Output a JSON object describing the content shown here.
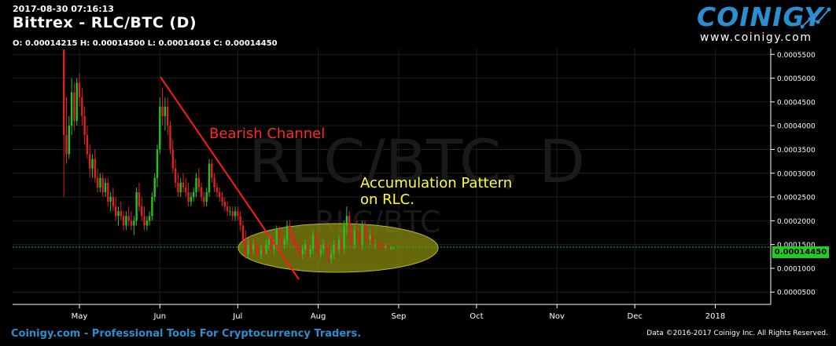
{
  "header": {
    "datetime": "2017-08-30 07:16:13",
    "title": "Bittrex - RLC/BTC (D)",
    "ohlc": "O: 0.00014215 H: 0.00014500 L: 0.00014016 C: 0.00014450"
  },
  "logo": {
    "name": "COINIGY",
    "url": "www.coinigy.com"
  },
  "watermark": {
    "main": "RLC/BTC, D",
    "sub": "RLC/BTC"
  },
  "current_price_label": "0.00014450",
  "footer": {
    "left": "Coinigy.com - Professional Tools For Cryptocurrency Traders.",
    "right": "Data ©2016-2017 Coinigy Inc. All Rights Reserved."
  },
  "annotations": {
    "channel_label": "Bearish Channel",
    "accumulation_line1": "Accumulation Pattern",
    "accumulation_line2": "on RLC."
  },
  "colors": {
    "up": "#22c422",
    "down": "#e02020",
    "channel": "#ff1a1a",
    "annotation_text_red": "#ff2a2a",
    "annotation_text_yellow": "#ffff33",
    "ellipse_fill": "#8a8a10",
    "price_tag": "#1fcf1f"
  },
  "chart_data": {
    "type": "candlestick",
    "y_axis_ticks": [
      "0.0000500",
      "0.0001000",
      "0.0001500",
      "0.0002000",
      "0.0002500",
      "0.0003000",
      "0.0003500",
      "0.0004000",
      "0.0004500",
      "0.0005000",
      "0.0005500"
    ],
    "ylim": [
      2.4e-05,
      0.000562
    ],
    "x_axis_ticks": [
      "May",
      "Jun",
      "Jul",
      "Aug",
      "Sep",
      "Oct",
      "Nov",
      "Dec",
      "2018"
    ],
    "current_price": 0.0001445,
    "series": [
      {
        "date": "2017-04-25",
        "o": 0.00056,
        "h": 0.00056,
        "l": 0.00025,
        "c": 0.00038
      },
      {
        "date": "2017-04-26",
        "o": 0.00038,
        "h": 0.00046,
        "l": 0.00032,
        "c": 0.00034
      },
      {
        "date": "2017-04-27",
        "o": 0.00034,
        "h": 0.00042,
        "l": 0.00033,
        "c": 0.0004
      },
      {
        "date": "2017-04-28",
        "o": 0.0004,
        "h": 0.0005,
        "l": 0.00038,
        "c": 0.00047
      },
      {
        "date": "2017-04-29",
        "o": 0.00047,
        "h": 0.00049,
        "l": 0.00039,
        "c": 0.00041
      },
      {
        "date": "2017-04-30",
        "o": 0.00041,
        "h": 0.0005,
        "l": 0.0004,
        "c": 0.00049
      },
      {
        "date": "2017-05-01",
        "o": 0.00049,
        "h": 0.00051,
        "l": 0.00044,
        "c": 0.00046
      },
      {
        "date": "2017-05-02",
        "o": 0.00046,
        "h": 0.00048,
        "l": 0.0004,
        "c": 0.00042
      },
      {
        "date": "2017-05-03",
        "o": 0.00042,
        "h": 0.00044,
        "l": 0.00036,
        "c": 0.00038
      },
      {
        "date": "2017-05-04",
        "o": 0.00038,
        "h": 0.0004,
        "l": 0.00033,
        "c": 0.00034
      },
      {
        "date": "2017-05-05",
        "o": 0.00034,
        "h": 0.00036,
        "l": 0.00029,
        "c": 0.00031
      },
      {
        "date": "2017-05-06",
        "o": 0.00031,
        "h": 0.00034,
        "l": 0.00029,
        "c": 0.00033
      },
      {
        "date": "2017-05-07",
        "o": 0.00033,
        "h": 0.00035,
        "l": 0.00028,
        "c": 0.00029
      },
      {
        "date": "2017-05-08",
        "o": 0.00029,
        "h": 0.00031,
        "l": 0.00026,
        "c": 0.00027
      },
      {
        "date": "2017-05-09",
        "o": 0.00027,
        "h": 0.0003,
        "l": 0.00026,
        "c": 0.00029
      },
      {
        "date": "2017-05-10",
        "o": 0.00029,
        "h": 0.0003,
        "l": 0.00025,
        "c": 0.00026
      },
      {
        "date": "2017-05-11",
        "o": 0.00026,
        "h": 0.00029,
        "l": 0.00025,
        "c": 0.00028
      },
      {
        "date": "2017-05-12",
        "o": 0.00028,
        "h": 0.00029,
        "l": 0.00023,
        "c": 0.00024
      },
      {
        "date": "2017-05-13",
        "o": 0.00024,
        "h": 0.00026,
        "l": 0.00022,
        "c": 0.00025
      },
      {
        "date": "2017-05-14",
        "o": 0.00025,
        "h": 0.00027,
        "l": 0.00022,
        "c": 0.00023
      },
      {
        "date": "2017-05-15",
        "o": 0.00023,
        "h": 0.00025,
        "l": 0.0002,
        "c": 0.00021
      },
      {
        "date": "2017-05-16",
        "o": 0.00021,
        "h": 0.00023,
        "l": 0.00019,
        "c": 0.00022
      },
      {
        "date": "2017-05-17",
        "o": 0.00022,
        "h": 0.00024,
        "l": 0.0002,
        "c": 0.00021
      },
      {
        "date": "2017-05-18",
        "o": 0.00021,
        "h": 0.00022,
        "l": 0.00018,
        "c": 0.00019
      },
      {
        "date": "2017-05-19",
        "o": 0.00019,
        "h": 0.00022,
        "l": 0.00018,
        "c": 0.00021
      },
      {
        "date": "2017-05-20",
        "o": 0.00021,
        "h": 0.00023,
        "l": 0.00019,
        "c": 0.0002
      },
      {
        "date": "2017-05-21",
        "o": 0.0002,
        "h": 0.00022,
        "l": 0.00018,
        "c": 0.00019
      },
      {
        "date": "2017-05-22",
        "o": 0.00019,
        "h": 0.00021,
        "l": 0.00017,
        "c": 0.0002
      },
      {
        "date": "2017-05-23",
        "o": 0.0002,
        "h": 0.00027,
        "l": 0.00019,
        "c": 0.00026
      },
      {
        "date": "2017-05-24",
        "o": 0.00026,
        "h": 0.00028,
        "l": 0.00022,
        "c": 0.00023
      },
      {
        "date": "2017-05-25",
        "o": 0.00023,
        "h": 0.00025,
        "l": 0.0002,
        "c": 0.00021
      },
      {
        "date": "2017-05-26",
        "o": 0.00021,
        "h": 0.00023,
        "l": 0.00018,
        "c": 0.00019
      },
      {
        "date": "2017-05-27",
        "o": 0.00019,
        "h": 0.00021,
        "l": 0.00018,
        "c": 0.0002
      },
      {
        "date": "2017-05-28",
        "o": 0.0002,
        "h": 0.00022,
        "l": 0.00019,
        "c": 0.00021
      },
      {
        "date": "2017-05-29",
        "o": 0.00021,
        "h": 0.00026,
        "l": 0.0002,
        "c": 0.00025
      },
      {
        "date": "2017-05-30",
        "o": 0.00025,
        "h": 0.0003,
        "l": 0.00024,
        "c": 0.00029
      },
      {
        "date": "2017-05-31",
        "o": 0.00029,
        "h": 0.00036,
        "l": 0.00027,
        "c": 0.00035
      },
      {
        "date": "2017-06-01",
        "o": 0.00035,
        "h": 0.00046,
        "l": 0.00034,
        "c": 0.00044
      },
      {
        "date": "2017-06-02",
        "o": 0.00044,
        "h": 0.00048,
        "l": 0.0004,
        "c": 0.00042
      },
      {
        "date": "2017-06-03",
        "o": 0.00042,
        "h": 0.00046,
        "l": 0.00039,
        "c": 0.00044
      },
      {
        "date": "2017-06-04",
        "o": 0.00044,
        "h": 0.00046,
        "l": 0.00038,
        "c": 0.0004
      },
      {
        "date": "2017-06-05",
        "o": 0.0004,
        "h": 0.00041,
        "l": 0.00034,
        "c": 0.00035
      },
      {
        "date": "2017-06-06",
        "o": 0.00035,
        "h": 0.00037,
        "l": 0.0003,
        "c": 0.00031
      },
      {
        "date": "2017-06-07",
        "o": 0.00031,
        "h": 0.00033,
        "l": 0.00027,
        "c": 0.00028
      },
      {
        "date": "2017-06-08",
        "o": 0.00028,
        "h": 0.0003,
        "l": 0.00025,
        "c": 0.00026
      },
      {
        "date": "2017-06-09",
        "o": 0.00026,
        "h": 0.00029,
        "l": 0.00025,
        "c": 0.00028
      },
      {
        "date": "2017-06-10",
        "o": 0.00028,
        "h": 0.0003,
        "l": 0.00026,
        "c": 0.00027
      },
      {
        "date": "2017-06-11",
        "o": 0.00027,
        "h": 0.00029,
        "l": 0.00025,
        "c": 0.00026
      },
      {
        "date": "2017-06-12",
        "o": 0.00026,
        "h": 0.00028,
        "l": 0.00023,
        "c": 0.00024
      },
      {
        "date": "2017-06-13",
        "o": 0.00024,
        "h": 0.00026,
        "l": 0.00023,
        "c": 0.00025
      },
      {
        "date": "2017-06-14",
        "o": 0.00025,
        "h": 0.00027,
        "l": 0.00024,
        "c": 0.00026
      },
      {
        "date": "2017-06-15",
        "o": 0.00026,
        "h": 0.0003,
        "l": 0.00025,
        "c": 0.00029
      },
      {
        "date": "2017-06-16",
        "o": 0.00029,
        "h": 0.00031,
        "l": 0.00026,
        "c": 0.00027
      },
      {
        "date": "2017-06-17",
        "o": 0.00027,
        "h": 0.00028,
        "l": 0.00024,
        "c": 0.00025
      },
      {
        "date": "2017-06-18",
        "o": 0.00025,
        "h": 0.00026,
        "l": 0.00023,
        "c": 0.00024
      },
      {
        "date": "2017-06-19",
        "o": 0.00024,
        "h": 0.00027,
        "l": 0.00023,
        "c": 0.00026
      },
      {
        "date": "2017-06-20",
        "o": 0.00026,
        "h": 0.00033,
        "l": 0.00025,
        "c": 0.00032
      },
      {
        "date": "2017-06-21",
        "o": 0.00032,
        "h": 0.00033,
        "l": 0.00028,
        "c": 0.00029
      },
      {
        "date": "2017-06-22",
        "o": 0.00029,
        "h": 0.0003,
        "l": 0.00026,
        "c": 0.00027
      },
      {
        "date": "2017-06-23",
        "o": 0.00027,
        "h": 0.00028,
        "l": 0.00025,
        "c": 0.00026
      },
      {
        "date": "2017-06-24",
        "o": 0.00026,
        "h": 0.00027,
        "l": 0.00024,
        "c": 0.00025
      },
      {
        "date": "2017-06-25",
        "o": 0.00025,
        "h": 0.00026,
        "l": 0.00023,
        "c": 0.00024
      },
      {
        "date": "2017-06-26",
        "o": 0.00024,
        "h": 0.00025,
        "l": 0.00022,
        "c": 0.00023
      },
      {
        "date": "2017-06-27",
        "o": 0.00023,
        "h": 0.00024,
        "l": 0.00021,
        "c": 0.00022
      },
      {
        "date": "2017-06-28",
        "o": 0.00022,
        "h": 0.00023,
        "l": 0.00021,
        "c": 0.00022
      },
      {
        "date": "2017-06-29",
        "o": 0.00022,
        "h": 0.00023,
        "l": 0.0002,
        "c": 0.00021
      },
      {
        "date": "2017-06-30",
        "o": 0.00021,
        "h": 0.00023,
        "l": 0.0002,
        "c": 0.00022
      },
      {
        "date": "2017-07-01",
        "o": 0.00022,
        "h": 0.00023,
        "l": 0.0002,
        "c": 0.00021
      },
      {
        "date": "2017-07-02",
        "o": 0.00021,
        "h": 0.00022,
        "l": 0.00018,
        "c": 0.00019
      },
      {
        "date": "2017-07-03",
        "o": 0.00019,
        "h": 0.0002,
        "l": 0.00015,
        "c": 0.00016
      },
      {
        "date": "2017-07-04",
        "o": 0.00016,
        "h": 0.00018,
        "l": 0.00012,
        "c": 0.00013
      },
      {
        "date": "2017-07-05",
        "o": 0.00013,
        "h": 0.00016,
        "l": 0.00012,
        "c": 0.00015
      },
      {
        "date": "2017-07-06",
        "o": 0.00015,
        "h": 0.00017,
        "l": 0.00013,
        "c": 0.00014
      },
      {
        "date": "2017-07-07",
        "o": 0.00014,
        "h": 0.00016,
        "l": 0.00013,
        "c": 0.00015
      },
      {
        "date": "2017-07-08",
        "o": 0.00015,
        "h": 0.00016,
        "l": 0.00013,
        "c": 0.00014
      },
      {
        "date": "2017-07-09",
        "o": 0.00014,
        "h": 0.00015,
        "l": 0.00012,
        "c": 0.00013
      },
      {
        "date": "2017-07-10",
        "o": 0.00013,
        "h": 0.00015,
        "l": 0.00012,
        "c": 0.00014
      },
      {
        "date": "2017-07-11",
        "o": 0.00014,
        "h": 0.00015,
        "l": 0.00013,
        "c": 0.00013
      },
      {
        "date": "2017-07-12",
        "o": 0.00013,
        "h": 0.00016,
        "l": 0.00013,
        "c": 0.00015
      },
      {
        "date": "2017-07-13",
        "o": 0.00015,
        "h": 0.00017,
        "l": 0.00014,
        "c": 0.00016
      },
      {
        "date": "2017-07-14",
        "o": 0.00016,
        "h": 0.00017,
        "l": 0.00013,
        "c": 0.00014
      },
      {
        "date": "2017-07-15",
        "o": 0.00014,
        "h": 0.00016,
        "l": 0.00013,
        "c": 0.00015
      },
      {
        "date": "2017-07-16",
        "o": 0.00015,
        "h": 0.00019,
        "l": 0.00014,
        "c": 0.00018
      },
      {
        "date": "2017-07-17",
        "o": 0.00018,
        "h": 0.00019,
        "l": 0.00015,
        "c": 0.00016
      },
      {
        "date": "2017-07-18",
        "o": 0.00016,
        "h": 0.00017,
        "l": 0.00014,
        "c": 0.00015
      },
      {
        "date": "2017-07-19",
        "o": 0.00015,
        "h": 0.00017,
        "l": 0.00014,
        "c": 0.00016
      },
      {
        "date": "2017-07-20",
        "o": 0.00016,
        "h": 0.0002,
        "l": 0.00015,
        "c": 0.00019
      },
      {
        "date": "2017-07-21",
        "o": 0.00019,
        "h": 0.0002,
        "l": 0.00016,
        "c": 0.00017
      },
      {
        "date": "2017-07-22",
        "o": 0.00017,
        "h": 0.00018,
        "l": 0.00015,
        "c": 0.00016
      },
      {
        "date": "2017-07-23",
        "o": 0.00016,
        "h": 0.00017,
        "l": 0.00014,
        "c": 0.00015
      },
      {
        "date": "2017-07-24",
        "o": 0.00015,
        "h": 0.00016,
        "l": 0.00013,
        "c": 0.00014
      },
      {
        "date": "2017-07-25",
        "o": 0.00014,
        "h": 0.00015,
        "l": 0.00012,
        "c": 0.00013
      },
      {
        "date": "2017-07-26",
        "o": 0.00013,
        "h": 0.00015,
        "l": 0.00012,
        "c": 0.00014
      },
      {
        "date": "2017-07-27",
        "o": 0.00014,
        "h": 0.00016,
        "l": 0.00013,
        "c": 0.00015
      },
      {
        "date": "2017-07-28",
        "o": 0.00015,
        "h": 0.00016,
        "l": 0.00012,
        "c": 0.00013
      },
      {
        "date": "2017-07-29",
        "o": 0.00013,
        "h": 0.00015,
        "l": 0.00012,
        "c": 0.00014
      },
      {
        "date": "2017-07-30",
        "o": 0.00014,
        "h": 0.00018,
        "l": 0.00013,
        "c": 0.00017
      },
      {
        "date": "2017-07-31",
        "o": 0.00017,
        "h": 0.00018,
        "l": 0.00014,
        "c": 0.00015
      },
      {
        "date": "2017-08-01",
        "o": 0.00015,
        "h": 0.00016,
        "l": 0.00012,
        "c": 0.00013
      },
      {
        "date": "2017-08-02",
        "o": 0.00013,
        "h": 0.00015,
        "l": 0.00012,
        "c": 0.00014
      },
      {
        "date": "2017-08-03",
        "o": 0.00014,
        "h": 0.00016,
        "l": 0.00013,
        "c": 0.00015
      },
      {
        "date": "2017-08-04",
        "o": 0.00015,
        "h": 0.00016,
        "l": 0.00013,
        "c": 0.00014
      },
      {
        "date": "2017-08-05",
        "o": 0.00014,
        "h": 0.00015,
        "l": 0.00011,
        "c": 0.00012
      },
      {
        "date": "2017-08-06",
        "o": 0.00012,
        "h": 0.00014,
        "l": 0.00011,
        "c": 0.00013
      },
      {
        "date": "2017-08-07",
        "o": 0.00013,
        "h": 0.00016,
        "l": 0.00012,
        "c": 0.00015
      },
      {
        "date": "2017-08-08",
        "o": 0.00015,
        "h": 0.00016,
        "l": 0.00013,
        "c": 0.00014
      },
      {
        "date": "2017-08-09",
        "o": 0.00014,
        "h": 0.00017,
        "l": 0.00013,
        "c": 0.00016
      },
      {
        "date": "2017-08-10",
        "o": 0.00016,
        "h": 0.00017,
        "l": 0.00013,
        "c": 0.00014
      },
      {
        "date": "2017-08-11",
        "o": 0.00014,
        "h": 0.0002,
        "l": 0.00013,
        "c": 0.00019
      },
      {
        "date": "2017-08-12",
        "o": 0.00019,
        "h": 0.00023,
        "l": 0.00017,
        "c": 0.00021
      },
      {
        "date": "2017-08-13",
        "o": 0.00021,
        "h": 0.00022,
        "l": 0.00016,
        "c": 0.00017
      },
      {
        "date": "2017-08-14",
        "o": 0.00017,
        "h": 0.00019,
        "l": 0.00014,
        "c": 0.00015
      },
      {
        "date": "2017-08-15",
        "o": 0.00015,
        "h": 0.00019,
        "l": 0.00014,
        "c": 0.00018
      },
      {
        "date": "2017-08-16",
        "o": 0.00018,
        "h": 0.0002,
        "l": 0.00016,
        "c": 0.00017
      },
      {
        "date": "2017-08-17",
        "o": 0.00017,
        "h": 0.00018,
        "l": 0.00014,
        "c": 0.00015
      },
      {
        "date": "2017-08-18",
        "o": 0.00015,
        "h": 0.0002,
        "l": 0.00014,
        "c": 0.00019
      },
      {
        "date": "2017-08-19",
        "o": 0.00019,
        "h": 0.0002,
        "l": 0.00016,
        "c": 0.00017
      },
      {
        "date": "2017-08-20",
        "o": 0.00017,
        "h": 0.00018,
        "l": 0.00015,
        "c": 0.00016
      },
      {
        "date": "2017-08-21",
        "o": 0.00016,
        "h": 0.00018,
        "l": 0.00015,
        "c": 0.00017
      },
      {
        "date": "2017-08-22",
        "o": 0.00017,
        "h": 0.00018,
        "l": 0.00014,
        "c": 0.00015
      },
      {
        "date": "2017-08-23",
        "o": 0.00015,
        "h": 0.00016,
        "l": 0.00014,
        "c": 0.00015
      },
      {
        "date": "2017-08-24",
        "o": 0.00015,
        "h": 0.00016,
        "l": 0.00014,
        "c": 0.000148
      },
      {
        "date": "2017-08-25",
        "o": 0.000148,
        "h": 0.000155,
        "l": 0.000142,
        "c": 0.000145
      },
      {
        "date": "2017-08-26",
        "o": 0.000145,
        "h": 0.000152,
        "l": 0.00014,
        "c": 0.000143
      },
      {
        "date": "2017-08-27",
        "o": 0.000143,
        "h": 0.00015,
        "l": 0.00014,
        "c": 0.000146
      },
      {
        "date": "2017-08-28",
        "o": 0.000146,
        "h": 0.000149,
        "l": 0.000139,
        "c": 0.000142
      },
      {
        "date": "2017-08-29",
        "o": 0.000142,
        "h": 0.000146,
        "l": 0.000138,
        "c": 0.0001421
      },
      {
        "date": "2017-08-30",
        "o": 0.00014215,
        "h": 0.000145,
        "l": 0.00014016,
        "c": 0.0001445
      }
    ]
  }
}
